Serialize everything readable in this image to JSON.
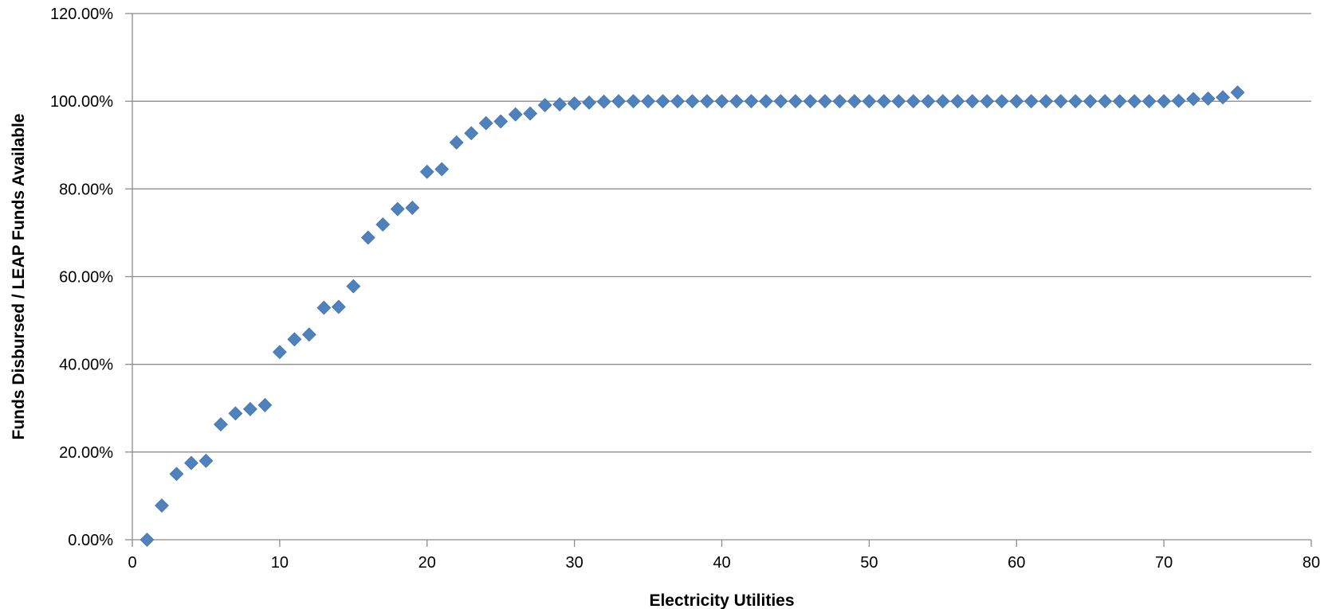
{
  "chart_data": {
    "type": "scatter",
    "title": "",
    "xlabel": "Electricity Utilities",
    "ylabel": "Funds Disbursed / LEAP Funds Available",
    "xlim": [
      0,
      80
    ],
    "ylim": [
      0,
      120
    ],
    "x_ticks": [
      0,
      10,
      20,
      30,
      40,
      50,
      60,
      70,
      80
    ],
    "y_ticks": [
      0,
      20,
      40,
      60,
      80,
      100,
      120
    ],
    "y_tick_labels": [
      "0.00%",
      "20.00%",
      "40.00%",
      "60.00%",
      "80.00%",
      "100.00%",
      "120.00%"
    ],
    "grid": "horizontal",
    "legend": "none",
    "marker": "diamond",
    "marker_color": "#4F81BD",
    "series": [
      {
        "x": [
          1,
          2,
          3,
          4,
          5,
          6,
          7,
          8,
          9,
          10,
          11,
          12,
          13,
          14,
          15,
          16,
          17,
          18,
          19,
          20,
          21,
          22,
          23,
          24,
          25,
          26,
          27,
          28,
          29,
          30,
          31,
          32,
          33,
          34,
          35,
          36,
          37,
          38,
          39,
          40,
          41,
          42,
          43,
          44,
          45,
          46,
          47,
          48,
          49,
          50,
          51,
          52,
          53,
          54,
          55,
          56,
          57,
          58,
          59,
          60,
          61,
          62,
          63,
          64,
          65,
          66,
          67,
          68,
          69,
          70,
          71,
          72,
          73,
          74,
          75
        ],
        "values": [
          0.0,
          7.8,
          15.0,
          17.5,
          18.0,
          26.3,
          28.8,
          29.8,
          30.7,
          42.8,
          45.7,
          46.8,
          52.9,
          53.1,
          57.8,
          68.9,
          71.9,
          75.4,
          75.7,
          83.9,
          84.5,
          90.6,
          92.7,
          95.0,
          95.4,
          97.0,
          97.2,
          99.1,
          99.3,
          99.5,
          99.7,
          99.9,
          100.0,
          100.0,
          100.0,
          100.0,
          100.0,
          100.0,
          100.0,
          100.0,
          100.0,
          100.0,
          100.0,
          100.0,
          100.0,
          100.0,
          100.0,
          100.0,
          100.0,
          100.0,
          100.0,
          100.0,
          100.0,
          100.0,
          100.0,
          100.0,
          100.0,
          100.0,
          100.0,
          100.0,
          100.0,
          100.0,
          100.0,
          100.0,
          100.0,
          100.0,
          100.0,
          100.0,
          100.0,
          100.0,
          100.1,
          100.5,
          100.6,
          100.9,
          102.0
        ]
      }
    ]
  }
}
